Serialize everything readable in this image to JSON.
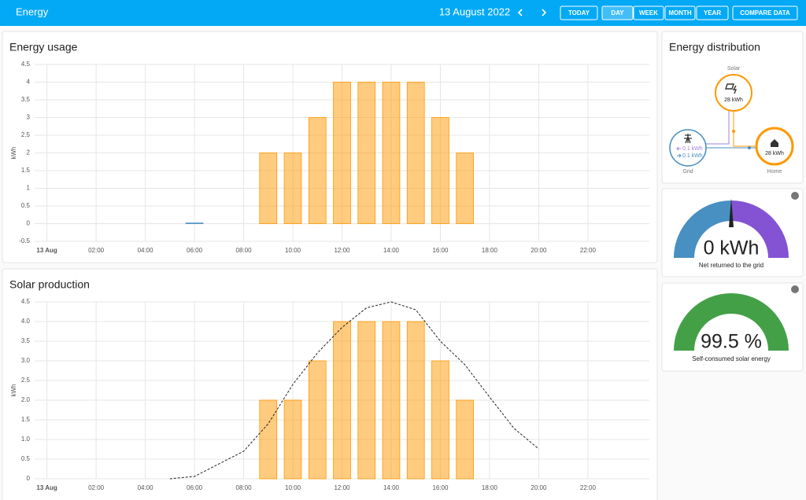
{
  "header": {
    "title": "Energy",
    "date": "13 August 2022",
    "buttons": [
      "TODAY",
      "DAY",
      "WEEK",
      "MONTH",
      "YEAR",
      "COMPARE DATA"
    ]
  },
  "chart_data": [
    {
      "type": "bar",
      "title": "Energy usage",
      "y_label": "kWh",
      "xlim": [
        -0.5,
        24.5
      ],
      "ylim": [
        -0.5,
        4.5
      ],
      "yticks": [
        4.5,
        4,
        3.5,
        3,
        2.5,
        2,
        1.5,
        1,
        0.5,
        0,
        -0.5
      ],
      "xticks": [
        {
          "value": 0,
          "label": "13 Aug"
        },
        {
          "value": 2,
          "label": "02:00"
        },
        {
          "value": 4,
          "label": "04:00"
        },
        {
          "value": 6,
          "label": "06:00"
        },
        {
          "value": 8,
          "label": "08:00"
        },
        {
          "value": 10,
          "label": "10:00"
        },
        {
          "value": 12,
          "label": "12:00"
        },
        {
          "value": 14,
          "label": "14:00"
        },
        {
          "value": 16,
          "label": "16:00"
        },
        {
          "value": 18,
          "label": "18:00"
        },
        {
          "value": 20,
          "label": "20:00"
        },
        {
          "value": 22,
          "label": "22:00"
        }
      ],
      "grid": true,
      "series": [
        {
          "type": "bar",
          "color": "#ff9800",
          "x": [
            9,
            10,
            11,
            12,
            13,
            14,
            15,
            16,
            17
          ],
          "values": [
            2,
            2,
            3,
            4,
            4,
            4,
            4,
            3,
            2
          ]
        },
        {
          "type": "bar",
          "color": "#488fc2",
          "x": [
            6
          ],
          "values": [
            0.02
          ]
        }
      ]
    },
    {
      "type": "bar",
      "title": "Solar production",
      "y_label": "kWh",
      "xlim": [
        -0.5,
        24.5
      ],
      "ylim": [
        0,
        4.5
      ],
      "yticks": [
        4.5,
        {
          "value": 4,
          "label": "4.0"
        },
        3.5,
        {
          "value": 3,
          "label": "3.0"
        },
        2.5,
        {
          "value": 2,
          "label": "2.0"
        },
        1.5,
        {
          "value": 1,
          "label": "1.0"
        },
        0.5,
        0
      ],
      "xticks": [
        {
          "value": 0,
          "label": "13 Aug"
        },
        {
          "value": 2,
          "label": "02:00"
        },
        {
          "value": 4,
          "label": "04:00"
        },
        {
          "value": 6,
          "label": "06:00"
        },
        {
          "value": 8,
          "label": "08:00"
        },
        {
          "value": 10,
          "label": "10:00"
        },
        {
          "value": 12,
          "label": "12:00"
        },
        {
          "value": 14,
          "label": "14:00"
        },
        {
          "value": 16,
          "label": "16:00"
        },
        {
          "value": 18,
          "label": "18:00"
        },
        {
          "value": 20,
          "label": "20:00"
        },
        {
          "value": 22,
          "label": "22:00"
        }
      ],
      "grid": true,
      "series": [
        {
          "type": "bar",
          "color": "#ff9800",
          "x": [
            9,
            10,
            11,
            12,
            13,
            14,
            15,
            16,
            17
          ],
          "values": [
            2,
            2,
            3,
            4,
            4,
            4,
            4,
            3,
            2
          ]
        },
        {
          "type": "line",
          "color": "#222222",
          "dash": true,
          "x": [
            5,
            6,
            7,
            8,
            9,
            10,
            11,
            12,
            13,
            14,
            15,
            16,
            17,
            18,
            19,
            20
          ],
          "values": [
            0,
            0.06,
            0.38,
            0.7,
            1.4,
            2.4,
            3.2,
            3.85,
            4.35,
            4.5,
            4.3,
            3.5,
            2.9,
            2.08,
            1.28,
            0.76
          ]
        }
      ]
    }
  ],
  "distribution": {
    "title": "Energy distribution",
    "solar": {
      "label": "Solar",
      "value": "28 kWh"
    },
    "grid": {
      "label": "Grid",
      "from": "0.1 kWh",
      "to": "0.1 kWh"
    },
    "home": {
      "label": "Home",
      "value": "28 kWh"
    }
  },
  "gauges": [
    {
      "value": "0 kWh",
      "caption": "Net returned to the grid"
    },
    {
      "value": "99.5 %",
      "caption": "Self-consumed solar energy"
    }
  ]
}
